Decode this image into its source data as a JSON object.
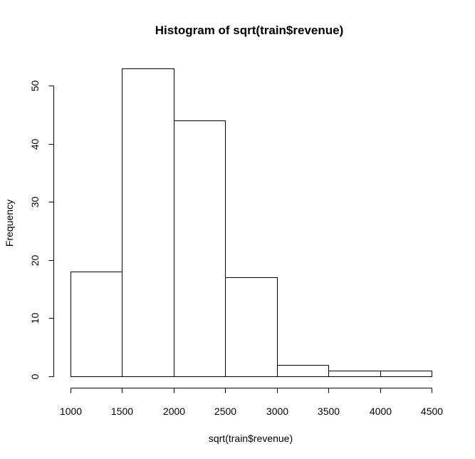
{
  "chart_data": {
    "type": "bar",
    "title": "Histogram of sqrt(train$revenue)",
    "xlabel": "sqrt(train$revenue)",
    "ylabel": "Frequency",
    "bins": [
      {
        "start": 1000,
        "end": 1500,
        "count": 18
      },
      {
        "start": 1500,
        "end": 2000,
        "count": 53
      },
      {
        "start": 2000,
        "end": 2500,
        "count": 44
      },
      {
        "start": 2500,
        "end": 3000,
        "count": 17
      },
      {
        "start": 3000,
        "end": 3500,
        "count": 2
      },
      {
        "start": 3500,
        "end": 4000,
        "count": 1
      },
      {
        "start": 4000,
        "end": 4500,
        "count": 1
      }
    ],
    "xlim": [
      1000,
      4500
    ],
    "ylim": [
      0,
      53
    ],
    "x_ticks": [
      1000,
      1500,
      2000,
      2500,
      3000,
      3500,
      4000,
      4500
    ],
    "y_ticks": [
      0,
      10,
      20,
      30,
      40,
      50
    ],
    "grid": false,
    "legend": "none",
    "colors": {
      "bar_fill": "#ffffff",
      "bar_stroke": "#000000",
      "background": "#ffffff"
    }
  }
}
